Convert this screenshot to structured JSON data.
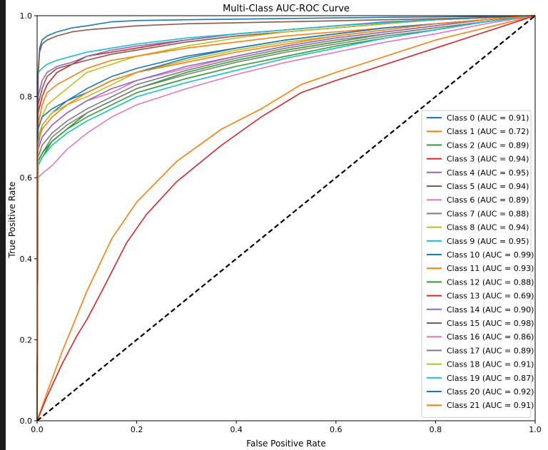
{
  "chart_data": {
    "type": "line",
    "title": "Multi-Class AUC-ROC Curve",
    "xlabel": "False Positive Rate",
    "ylabel": "True Positive Rate",
    "xlim": [
      0.0,
      1.0
    ],
    "ylim": [
      0.0,
      1.0
    ],
    "x_ticks": [
      "0.0",
      "0.2",
      "0.4",
      "0.6",
      "0.8",
      "1.0"
    ],
    "y_ticks": [
      "0.0",
      "0.2",
      "0.4",
      "0.6",
      "0.8",
      "1.0"
    ],
    "grid": false,
    "legend_position": "lower-right",
    "diagonal": {
      "x": [
        0,
        1
      ],
      "y": [
        0,
        1
      ],
      "color": "#000000",
      "style": "dashed"
    },
    "series": [
      {
        "name": "Class 0 (AUC = 0.91)",
        "color": "#1f77b4",
        "x": [
          0,
          0.002,
          0.01,
          0.03,
          0.06,
          0.1,
          0.15,
          0.2,
          0.3,
          0.4,
          0.5,
          0.6,
          0.7,
          0.8,
          0.9,
          1.0
        ],
        "y": [
          0,
          0.68,
          0.73,
          0.76,
          0.79,
          0.82,
          0.85,
          0.87,
          0.9,
          0.92,
          0.94,
          0.955,
          0.97,
          0.98,
          0.99,
          1.0
        ]
      },
      {
        "name": "Class 1 (AUC = 0.72)",
        "color": "#ff7f0e",
        "x": [
          0,
          0.02,
          0.05,
          0.08,
          0.1,
          0.15,
          0.2,
          0.28,
          0.37,
          0.45,
          0.53,
          0.6,
          0.7,
          0.8,
          0.9,
          1.0
        ],
        "y": [
          0,
          0.07,
          0.17,
          0.26,
          0.32,
          0.45,
          0.54,
          0.64,
          0.72,
          0.77,
          0.83,
          0.86,
          0.9,
          0.94,
          0.97,
          1.0
        ]
      },
      {
        "name": "Class 2 (AUC = 0.89)",
        "color": "#2ca02c",
        "x": [
          0,
          0.002,
          0.01,
          0.03,
          0.06,
          0.1,
          0.15,
          0.2,
          0.3,
          0.4,
          0.5,
          0.6,
          0.7,
          0.8,
          0.9,
          1.0
        ],
        "y": [
          0,
          0.63,
          0.65,
          0.69,
          0.72,
          0.76,
          0.79,
          0.82,
          0.86,
          0.89,
          0.915,
          0.935,
          0.955,
          0.97,
          0.985,
          1.0
        ]
      },
      {
        "name": "Class 3 (AUC = 0.94)",
        "color": "#d62728",
        "x": [
          0,
          0.002,
          0.01,
          0.02,
          0.04,
          0.07,
          0.1,
          0.15,
          0.2,
          0.3,
          0.4,
          0.5,
          0.6,
          0.7,
          0.8,
          0.9,
          1.0
        ],
        "y": [
          0,
          0.76,
          0.8,
          0.83,
          0.86,
          0.88,
          0.9,
          0.91,
          0.92,
          0.94,
          0.955,
          0.965,
          0.975,
          0.983,
          0.99,
          0.995,
          1.0
        ]
      },
      {
        "name": "Class 4 (AUC = 0.95)",
        "color": "#9467bd",
        "x": [
          0,
          0.002,
          0.01,
          0.02,
          0.04,
          0.07,
          0.1,
          0.15,
          0.2,
          0.3,
          0.4,
          0.5,
          0.6,
          0.7,
          0.8,
          0.9,
          1.0
        ],
        "y": [
          0,
          0.8,
          0.84,
          0.86,
          0.875,
          0.885,
          0.9,
          0.915,
          0.925,
          0.94,
          0.955,
          0.965,
          0.975,
          0.985,
          0.99,
          0.995,
          1.0
        ]
      },
      {
        "name": "Class 5 (AUC = 0.94)",
        "color": "#8c564b",
        "x": [
          0,
          0.002,
          0.01,
          0.02,
          0.04,
          0.07,
          0.1,
          0.15,
          0.2,
          0.3,
          0.4,
          0.5,
          0.6,
          0.7,
          0.8,
          0.9,
          1.0
        ],
        "y": [
          0,
          0.78,
          0.82,
          0.85,
          0.87,
          0.88,
          0.89,
          0.905,
          0.915,
          0.935,
          0.95,
          0.96,
          0.97,
          0.98,
          0.99,
          0.995,
          1.0
        ]
      },
      {
        "name": "Class 6 (AUC = 0.89)",
        "color": "#e377c2",
        "x": [
          0,
          0.002,
          0.01,
          0.03,
          0.06,
          0.1,
          0.15,
          0.2,
          0.3,
          0.4,
          0.5,
          0.6,
          0.7,
          0.8,
          0.9,
          1.0
        ],
        "y": [
          0,
          0.67,
          0.7,
          0.73,
          0.76,
          0.79,
          0.81,
          0.84,
          0.87,
          0.9,
          0.925,
          0.945,
          0.96,
          0.975,
          0.99,
          1.0
        ]
      },
      {
        "name": "Class 7 (AUC = 0.88)",
        "color": "#7f7f7f",
        "x": [
          0,
          0.002,
          0.01,
          0.03,
          0.06,
          0.1,
          0.15,
          0.2,
          0.3,
          0.4,
          0.5,
          0.6,
          0.7,
          0.8,
          0.9,
          1.0
        ],
        "y": [
          0,
          0.64,
          0.66,
          0.7,
          0.73,
          0.76,
          0.79,
          0.82,
          0.855,
          0.885,
          0.91,
          0.93,
          0.95,
          0.965,
          0.985,
          1.0
        ]
      },
      {
        "name": "Class 8 (AUC = 0.94)",
        "color": "#bcbd22",
        "x": [
          0,
          0.002,
          0.01,
          0.02,
          0.04,
          0.07,
          0.1,
          0.15,
          0.2,
          0.3,
          0.4,
          0.5,
          0.6,
          0.7,
          0.8,
          0.9,
          1.0
        ],
        "y": [
          0,
          0.72,
          0.75,
          0.78,
          0.8,
          0.83,
          0.86,
          0.88,
          0.9,
          0.925,
          0.945,
          0.96,
          0.97,
          0.98,
          0.99,
          0.995,
          1.0
        ]
      },
      {
        "name": "Class 9 (AUC = 0.95)",
        "color": "#17becf",
        "x": [
          0,
          0.002,
          0.01,
          0.02,
          0.04,
          0.07,
          0.1,
          0.15,
          0.2,
          0.3,
          0.4,
          0.5,
          0.6,
          0.7,
          0.8,
          0.9,
          1.0
        ],
        "y": [
          0,
          0.86,
          0.87,
          0.88,
          0.89,
          0.9,
          0.91,
          0.92,
          0.93,
          0.945,
          0.955,
          0.965,
          0.975,
          0.983,
          0.99,
          0.995,
          1.0
        ]
      },
      {
        "name": "Class 10 (AUC = 0.99)",
        "color": "#1f77b4",
        "x": [
          0,
          0.002,
          0.005,
          0.01,
          0.02,
          0.04,
          0.07,
          0.1,
          0.15,
          0.2,
          0.3,
          0.5,
          0.7,
          0.9,
          1.0
        ],
        "y": [
          0,
          0.86,
          0.92,
          0.94,
          0.95,
          0.96,
          0.97,
          0.975,
          0.985,
          0.988,
          0.99,
          0.993,
          0.996,
          0.998,
          1.0
        ]
      },
      {
        "name": "Class 11 (AUC = 0.93)",
        "color": "#ff7f0e",
        "x": [
          0,
          0.002,
          0.01,
          0.02,
          0.04,
          0.07,
          0.1,
          0.15,
          0.2,
          0.3,
          0.4,
          0.5,
          0.6,
          0.7,
          0.8,
          0.9,
          1.0
        ],
        "y": [
          0,
          0.73,
          0.78,
          0.81,
          0.83,
          0.85,
          0.87,
          0.89,
          0.9,
          0.92,
          0.935,
          0.95,
          0.96,
          0.97,
          0.98,
          0.99,
          1.0
        ]
      },
      {
        "name": "Class 12 (AUC = 0.88)",
        "color": "#2ca02c",
        "x": [
          0,
          0.002,
          0.01,
          0.03,
          0.06,
          0.1,
          0.15,
          0.2,
          0.3,
          0.4,
          0.5,
          0.6,
          0.7,
          0.8,
          0.9,
          1.0
        ],
        "y": [
          0,
          0.64,
          0.66,
          0.69,
          0.72,
          0.75,
          0.78,
          0.81,
          0.845,
          0.875,
          0.9,
          0.925,
          0.945,
          0.965,
          0.985,
          1.0
        ]
      },
      {
        "name": "Class 13 (AUC = 0.69)",
        "color": "#d62728",
        "x": [
          0,
          0.02,
          0.05,
          0.08,
          0.1,
          0.13,
          0.18,
          0.22,
          0.28,
          0.37,
          0.45,
          0.53,
          0.6,
          0.7,
          0.8,
          0.9,
          1.0
        ],
        "y": [
          0,
          0.06,
          0.14,
          0.21,
          0.25,
          0.32,
          0.44,
          0.51,
          0.59,
          0.68,
          0.75,
          0.81,
          0.84,
          0.88,
          0.92,
          0.96,
          1.0
        ]
      },
      {
        "name": "Class 14 (AUC = 0.90)",
        "color": "#9467bd",
        "x": [
          0,
          0.002,
          0.01,
          0.03,
          0.06,
          0.1,
          0.15,
          0.2,
          0.3,
          0.4,
          0.5,
          0.6,
          0.7,
          0.8,
          0.9,
          1.0
        ],
        "y": [
          0,
          0.67,
          0.7,
          0.73,
          0.76,
          0.79,
          0.82,
          0.84,
          0.875,
          0.9,
          0.925,
          0.945,
          0.96,
          0.975,
          0.99,
          1.0
        ]
      },
      {
        "name": "Class 15 (AUC = 0.98)",
        "color": "#8c564b",
        "x": [
          0,
          0.002,
          0.005,
          0.01,
          0.02,
          0.04,
          0.07,
          0.1,
          0.15,
          0.2,
          0.3,
          0.5,
          0.7,
          0.9,
          1.0
        ],
        "y": [
          0,
          0.85,
          0.91,
          0.93,
          0.94,
          0.95,
          0.96,
          0.965,
          0.97,
          0.975,
          0.98,
          0.985,
          0.99,
          0.995,
          1.0
        ]
      },
      {
        "name": "Class 16 (AUC = 0.86)",
        "color": "#e377c2",
        "x": [
          0,
          0.002,
          0.01,
          0.03,
          0.06,
          0.1,
          0.15,
          0.2,
          0.3,
          0.4,
          0.5,
          0.6,
          0.7,
          0.8,
          0.9,
          1.0
        ],
        "y": [
          0,
          0.6,
          0.61,
          0.63,
          0.67,
          0.71,
          0.75,
          0.78,
          0.82,
          0.855,
          0.885,
          0.91,
          0.935,
          0.955,
          0.98,
          1.0
        ]
      },
      {
        "name": "Class 17 (AUC = 0.89)",
        "color": "#7f7f7f",
        "x": [
          0,
          0.002,
          0.01,
          0.03,
          0.06,
          0.1,
          0.15,
          0.2,
          0.3,
          0.4,
          0.5,
          0.6,
          0.7,
          0.8,
          0.9,
          1.0
        ],
        "y": [
          0,
          0.65,
          0.68,
          0.71,
          0.74,
          0.77,
          0.8,
          0.83,
          0.865,
          0.895,
          0.92,
          0.94,
          0.955,
          0.97,
          0.985,
          1.0
        ]
      },
      {
        "name": "Class 18 (AUC = 0.91)",
        "color": "#bcbd22",
        "x": [
          0,
          0.002,
          0.01,
          0.03,
          0.06,
          0.1,
          0.15,
          0.2,
          0.3,
          0.4,
          0.5,
          0.6,
          0.7,
          0.8,
          0.9,
          1.0
        ],
        "y": [
          0,
          0.7,
          0.73,
          0.76,
          0.78,
          0.8,
          0.83,
          0.86,
          0.89,
          0.915,
          0.935,
          0.95,
          0.965,
          0.98,
          0.99,
          1.0
        ]
      },
      {
        "name": "Class 19 (AUC = 0.87)",
        "color": "#17becf",
        "x": [
          0,
          0.002,
          0.01,
          0.03,
          0.06,
          0.1,
          0.15,
          0.2,
          0.3,
          0.4,
          0.5,
          0.6,
          0.7,
          0.8,
          0.9,
          1.0
        ],
        "y": [
          0,
          0.63,
          0.65,
          0.68,
          0.71,
          0.74,
          0.77,
          0.8,
          0.835,
          0.865,
          0.895,
          0.92,
          0.945,
          0.965,
          0.985,
          1.0
        ]
      },
      {
        "name": "Class 20 (AUC = 0.92)",
        "color": "#1f77b4",
        "x": [
          0,
          0.002,
          0.01,
          0.03,
          0.06,
          0.1,
          0.15,
          0.2,
          0.3,
          0.4,
          0.5,
          0.6,
          0.7,
          0.8,
          0.9,
          1.0
        ],
        "y": [
          0,
          0.72,
          0.75,
          0.77,
          0.79,
          0.81,
          0.84,
          0.86,
          0.895,
          0.92,
          0.94,
          0.955,
          0.97,
          0.98,
          0.99,
          1.0
        ]
      },
      {
        "name": "Class 21 (AUC = 0.91)",
        "color": "#ff7f0e",
        "x": [
          0,
          0.002,
          0.01,
          0.03,
          0.06,
          0.1,
          0.15,
          0.2,
          0.3,
          0.4,
          0.5,
          0.6,
          0.7,
          0.8,
          0.9,
          1.0
        ],
        "y": [
          0,
          0.69,
          0.72,
          0.75,
          0.78,
          0.81,
          0.84,
          0.86,
          0.885,
          0.91,
          0.93,
          0.95,
          0.965,
          0.98,
          0.99,
          1.0
        ]
      }
    ]
  }
}
